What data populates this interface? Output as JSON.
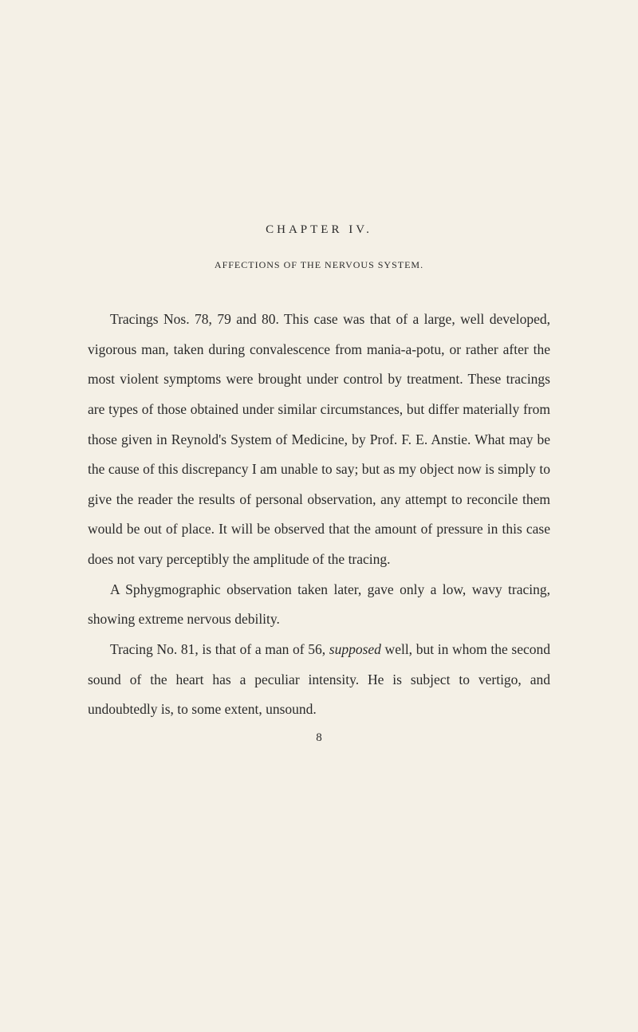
{
  "chapter": {
    "heading": "CHAPTER IV.",
    "subtitle": "AFFECTIONS OF THE NERVOUS SYSTEM."
  },
  "paragraphs": {
    "p1_part1": "Tracings Nos. 78, 79 and 80. This case was that of a large, well developed, vigorous man, taken during convalescence from mania-a-potu, or rather after the most violent symptoms were brought under control by treatment. These tracings are types of those obtained under similar circumstances, but differ materially from those given in Reynold's System of Medicine, by Prof. F. E. Anstie. What may be the cause of this discrepancy I am unable to say; but as my object now is simply to give the reader the results of personal observation, any attempt to reconcile them would be out of place. It will be observed that the amount of pressure in this case does not vary perceptibly the amplitude of the tracing.",
    "p2": "A Sphygmographic observation taken later, gave only a low, wavy tracing, showing extreme nervous debility.",
    "p3_part1": "Tracing No. 81, is that of a man of 56, ",
    "p3_italic": "supposed",
    "p3_part2": " well, but in whom the second sound of the heart has a peculiar intensity. He is subject to vertigo, and undoubtedly is, to some extent, unsound."
  },
  "page_number": "8"
}
